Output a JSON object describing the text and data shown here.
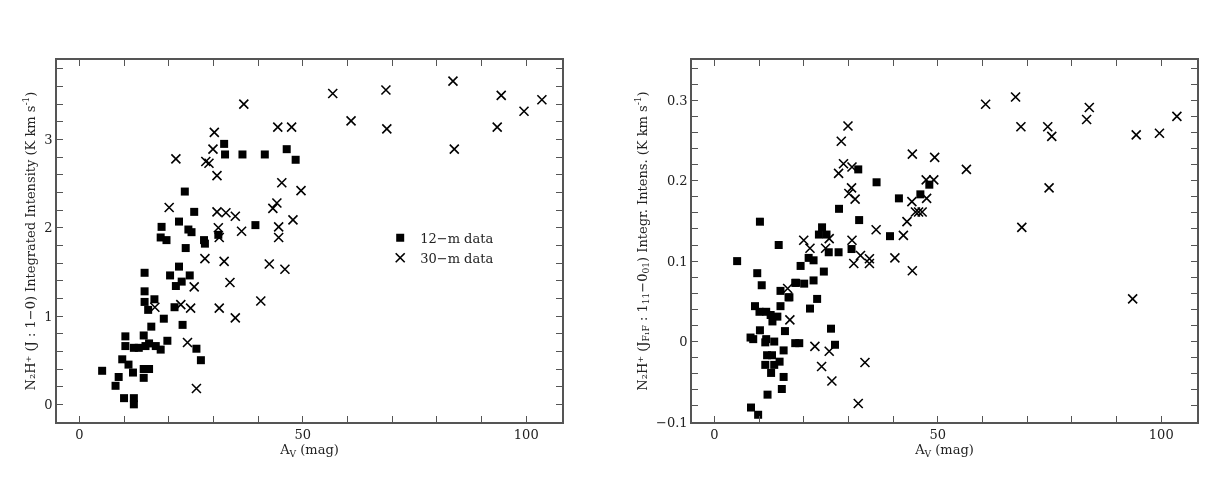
{
  "chart_data": [
    {
      "type": "scatter",
      "xlabel": "A$_{V}$ (mag)",
      "ylabel": "N₂H⁺ (J : 1−0) Integrated Intensity (K km s$^{-1}$)",
      "xlim": [
        -5,
        108
      ],
      "ylim": [
        -0.2,
        3.9
      ],
      "xticks": [
        0,
        {
          "value": 10,
          "label": null
        },
        {
          "value": 20,
          "label": null
        },
        {
          "value": 30,
          "label": null
        },
        {
          "value": 40,
          "label": null
        },
        50,
        {
          "value": 60,
          "label": null
        },
        {
          "value": 70,
          "label": null
        },
        {
          "value": 80,
          "label": null
        },
        {
          "value": 90,
          "label": null
        },
        100
      ],
      "yticks": [
        0,
        {
          "value": 0.2,
          "label": null
        },
        {
          "value": 0.4,
          "label": null
        },
        {
          "value": 0.6,
          "label": null
        },
        {
          "value": 0.8,
          "label": null
        },
        1,
        {
          "value": 1.2,
          "label": null
        },
        {
          "value": 1.4,
          "label": null
        },
        {
          "value": 1.6,
          "label": null
        },
        {
          "value": 1.8,
          "label": null
        },
        2,
        {
          "value": 2.2,
          "label": null
        },
        {
          "value": 2.4,
          "label": null
        },
        {
          "value": 2.6,
          "label": null
        },
        {
          "value": 2.8,
          "label": null
        },
        3,
        {
          "value": 3.2,
          "label": null
        },
        {
          "value": 3.4,
          "label": null
        },
        {
          "value": 3.6,
          "label": null
        },
        {
          "value": 3.8,
          "label": null
        }
      ],
      "legend": "right",
      "series": [
        {
          "name": "12−m data",
          "color": "#000000",
          "marker": "square",
          "x": [
            5.1,
            8.1,
            8.8,
            10.0,
            12.2,
            12.2,
            10.3,
            10.3,
            9.6,
            11.0,
            12.0,
            14.4,
            14.4,
            15.6,
            12.2,
            13.3,
            14.8,
            15.6,
            17.1,
            18.2,
            19.7,
            14.4,
            16.1,
            18.9,
            15.4,
            14.6,
            14.6,
            16.8,
            14.6,
            21.3,
            23.1,
            21.6,
            22.9,
            22.3,
            24.7,
            20.3,
            18.4,
            18.2,
            19.5,
            22.3,
            24.4,
            25.1,
            23.8,
            23.6,
            25.7,
            27.9,
            28.1,
            26.2,
            27.2,
            31.1,
            32.4,
            32.6,
            36.5,
            41.5,
            39.4,
            46.4,
            48.4
          ],
          "values": [
            0.38,
            0.21,
            0.31,
            0.07,
            0.07,
            0.0,
            0.77,
            0.66,
            0.51,
            0.45,
            0.36,
            0.4,
            0.3,
            0.4,
            0.64,
            0.64,
            0.66,
            0.69,
            0.66,
            0.62,
            0.72,
            0.78,
            0.88,
            0.97,
            1.07,
            1.16,
            1.28,
            1.19,
            1.49,
            1.1,
            0.9,
            1.34,
            1.39,
            1.56,
            1.46,
            1.46,
            2.01,
            1.89,
            1.86,
            2.07,
            1.98,
            1.95,
            1.77,
            2.41,
            2.18,
            1.86,
            1.82,
            0.63,
            0.5,
            1.92,
            2.95,
            2.83,
            2.83,
            2.83,
            2.03,
            2.89,
            2.77
          ]
        },
        {
          "name": "30−m data",
          "color": "#000000",
          "marker": "cross",
          "x": [
            36.8,
            21.6,
            30.2,
            29.9,
            28.3,
            29.0,
            30.8,
            20.1,
            30.8,
            32.8,
            34.9,
            31.1,
            31.3,
            36.3,
            28.1,
            32.4,
            33.7,
            25.7,
            22.7,
            24.9,
            31.3,
            34.9,
            24.2,
            26.2,
            16.9,
            40.6,
            42.5,
            46.0,
            44.4,
            47.5,
            45.3,
            49.6,
            43.3,
            44.2,
            47.8,
            44.6,
            44.6,
            56.7,
            60.8,
            68.6,
            68.8,
            83.6,
            83.9,
            94.4,
            93.5,
            99.5,
            103.5
          ],
          "values": [
            3.4,
            2.78,
            3.08,
            2.89,
            2.75,
            2.73,
            2.59,
            2.23,
            2.18,
            2.17,
            2.13,
            2.0,
            1.89,
            1.96,
            1.65,
            1.62,
            1.38,
            1.33,
            1.13,
            1.09,
            1.09,
            0.98,
            0.7,
            0.18,
            1.1,
            1.17,
            1.59,
            1.53,
            3.14,
            3.14,
            2.51,
            2.42,
            2.22,
            2.28,
            2.09,
            2.01,
            1.89,
            3.52,
            3.21,
            3.56,
            3.12,
            3.66,
            2.89,
            3.5,
            3.14,
            3.32,
            3.45
          ]
        }
      ]
    },
    {
      "type": "scatter",
      "xlabel": "A$_{V}$ (mag)",
      "ylabel": "N₂H⁺ (J$_{F₁F}$ : 1$_{11}$−0$_{01}$) Integr. Intens. (K km s$^{-1}$)",
      "xlim": [
        -5,
        108
      ],
      "ylim": [
        -0.1,
        0.35
      ],
      "xticks": [
        0,
        {
          "value": 10,
          "label": null
        },
        {
          "value": 20,
          "label": null
        },
        {
          "value": 30,
          "label": null
        },
        {
          "value": 40,
          "label": null
        },
        50,
        {
          "value": 60,
          "label": null
        },
        {
          "value": 70,
          "label": null
        },
        {
          "value": 80,
          "label": null
        },
        {
          "value": 90,
          "label": null
        },
        100
      ],
      "yticks": [
        {
          "value": -0.1,
          "label": "−0.1"
        },
        {
          "value": -0.08,
          "label": null
        },
        {
          "value": -0.06,
          "label": null
        },
        {
          "value": -0.04,
          "label": null
        },
        {
          "value": -0.02,
          "label": null
        },
        0,
        {
          "value": 0.02,
          "label": null
        },
        {
          "value": 0.04,
          "label": null
        },
        {
          "value": 0.06,
          "label": null
        },
        {
          "value": 0.08,
          "label": null
        },
        0.1,
        {
          "value": 0.12,
          "label": null
        },
        {
          "value": 0.14,
          "label": null
        },
        {
          "value": 0.16,
          "label": null
        },
        {
          "value": 0.18,
          "label": null
        },
        0.2,
        {
          "value": 0.22,
          "label": null
        },
        {
          "value": 0.24,
          "label": null
        },
        {
          "value": 0.26,
          "label": null
        },
        {
          "value": 0.28,
          "label": null
        },
        0.3,
        {
          "value": 0.32,
          "label": null
        },
        {
          "value": 0.34,
          "label": null
        }
      ],
      "series": [
        {
          "color": "#000000",
          "marker": "square",
          "x": [
            5.1,
            10.2,
            9.6,
            10.6,
            14.4,
            14.8,
            9.1,
            10.1,
            11.6,
            12.6,
            14.1,
            14.8,
            16.8,
            18.3,
            16.6,
            18.1,
            20.1,
            19.3,
            21.1,
            22.2,
            22.2,
            23.0,
            21.4,
            24.5,
            23.4,
            24.1,
            25.1,
            25.6,
            27.8,
            27.9,
            32.2,
            32.4,
            30.7,
            36.3,
            41.3,
            39.3,
            46.1,
            48.1,
            13.0,
            8.1,
            8.7,
            10.2,
            11.6,
            11.4,
            13.4,
            11.8,
            12.9,
            11.4,
            13.4,
            12.7,
            14.6,
            15.5,
            11.9,
            15.5,
            15.1,
            18.1,
            19.0,
            15.8,
            26.1,
            27.0,
            8.2,
            9.8
          ],
          "values": [
            0.1,
            0.149,
            0.085,
            0.07,
            0.12,
            0.063,
            0.044,
            0.037,
            0.037,
            0.033,
            0.031,
            0.044,
            0.055,
            0.073,
            0.055,
            0.073,
            0.072,
            0.094,
            0.104,
            0.101,
            0.076,
            0.053,
            0.041,
            0.087,
            0.133,
            0.142,
            0.133,
            0.111,
            0.111,
            0.165,
            0.214,
            0.151,
            0.115,
            0.198,
            0.178,
            0.131,
            0.183,
            0.195,
            0.025,
            0.005,
            0.003,
            0.014,
            0.003,
            -0.001,
            0.0,
            -0.017,
            -0.017,
            -0.029,
            -0.029,
            -0.039,
            -0.025,
            -0.011,
            -0.066,
            -0.044,
            -0.059,
            -0.002,
            -0.002,
            0.013,
            0.016,
            -0.004,
            -0.082,
            -0.091
          ]
        },
        {
          "color": "#000000",
          "marker": "cross",
          "x": [
            29.9,
            28.4,
            28.9,
            30.8,
            27.8,
            30.7,
            30.1,
            31.5,
            20.0,
            21.4,
            24.9,
            25.7,
            30.8,
            32.7,
            31.2,
            34.7,
            34.7,
            36.2,
            40.4,
            42.3,
            43.1,
            44.3,
            44.2,
            45.0,
            45.7,
            46.5,
            47.5,
            47.4,
            49.1,
            16.4,
            16.9,
            22.5,
            25.7,
            24.0,
            26.3,
            33.7,
            32.2,
            49.3,
            44.3,
            60.7,
            67.4,
            68.6,
            56.4,
            68.8,
            74.6,
            75.5,
            74.9,
            83.9,
            83.3,
            94.4,
            93.6,
            99.6,
            103.5
          ],
          "values": [
            0.268,
            0.249,
            0.221,
            0.217,
            0.209,
            0.191,
            0.184,
            0.177,
            0.126,
            0.116,
            0.116,
            0.128,
            0.126,
            0.107,
            0.097,
            0.103,
            0.097,
            0.139,
            0.104,
            0.132,
            0.149,
            0.088,
            0.174,
            0.161,
            0.161,
            0.161,
            0.178,
            0.201,
            0.201,
            0.066,
            0.027,
            -0.006,
            -0.012,
            -0.031,
            -0.049,
            -0.026,
            -0.077,
            0.229,
            0.233,
            0.295,
            0.304,
            0.267,
            0.214,
            0.142,
            0.267,
            0.255,
            0.191,
            0.291,
            0.276,
            0.257,
            0.053,
            0.259,
            0.28
          ]
        }
      ]
    }
  ]
}
